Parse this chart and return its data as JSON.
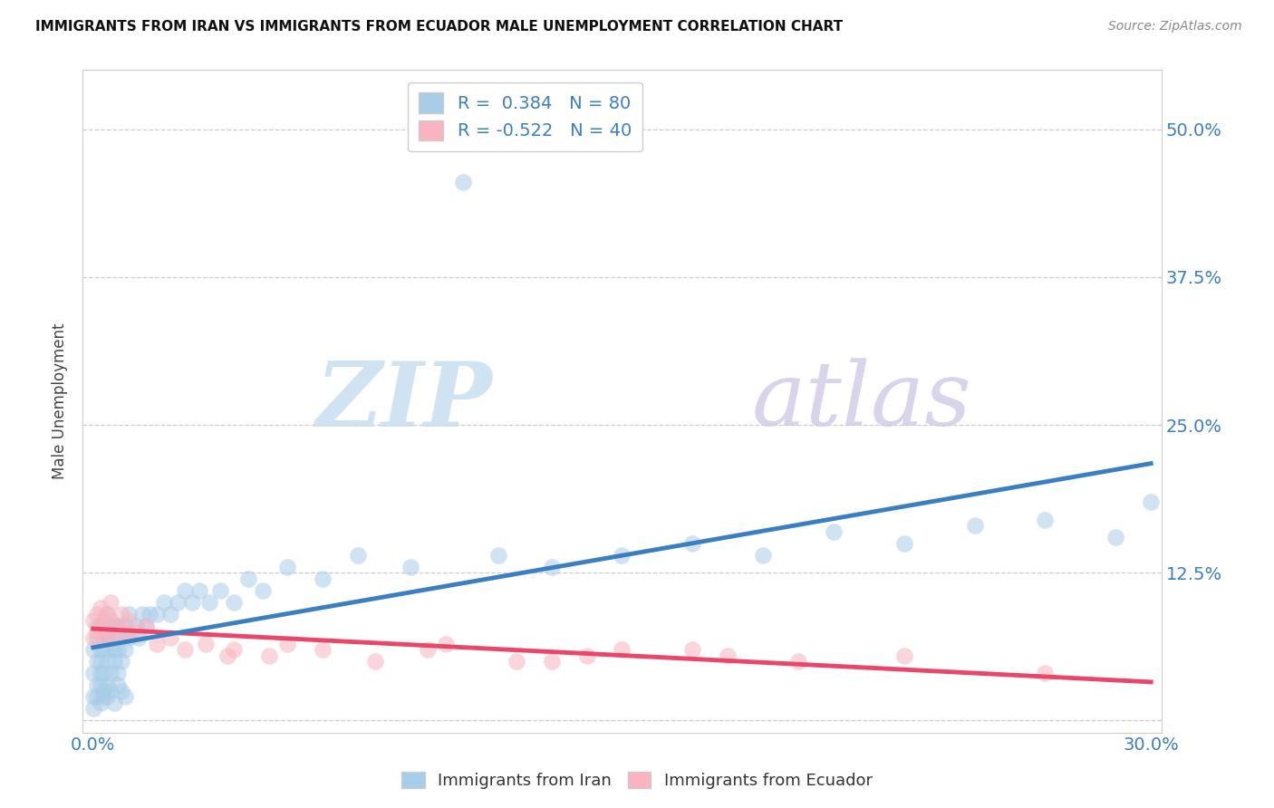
{
  "title": "IMMIGRANTS FROM IRAN VS IMMIGRANTS FROM ECUADOR MALE UNEMPLOYMENT CORRELATION CHART",
  "source": "Source: ZipAtlas.com",
  "ylabel": "Male Unemployment",
  "xlim": [
    0.0,
    0.3
  ],
  "ylim": [
    -0.01,
    0.55
  ],
  "yticks": [
    0.0,
    0.125,
    0.25,
    0.375,
    0.5
  ],
  "ytick_labels": [
    "",
    "12.5%",
    "25.0%",
    "37.5%",
    "50.0%"
  ],
  "iran_R": 0.384,
  "iran_N": 80,
  "ecuador_R": -0.522,
  "ecuador_N": 40,
  "iran_color": "#a8cde8",
  "iran_line_color": "#3a7fc1",
  "ecuador_color": "#f9b4c0",
  "ecuador_line_color": "#e8476a",
  "watermark_zip": "ZIP",
  "watermark_atlas": "atlas",
  "iran_x": [
    0.0,
    0.0,
    0.0,
    0.001,
    0.001,
    0.001,
    0.001,
    0.002,
    0.002,
    0.002,
    0.002,
    0.002,
    0.003,
    0.003,
    0.003,
    0.003,
    0.003,
    0.004,
    0.004,
    0.004,
    0.004,
    0.005,
    0.005,
    0.005,
    0.005,
    0.006,
    0.006,
    0.006,
    0.007,
    0.007,
    0.007,
    0.008,
    0.008,
    0.009,
    0.009,
    0.01,
    0.01,
    0.012,
    0.013,
    0.014,
    0.015,
    0.016,
    0.018,
    0.02,
    0.022,
    0.024,
    0.026,
    0.028,
    0.03,
    0.033,
    0.036,
    0.04,
    0.044,
    0.048,
    0.055,
    0.065,
    0.075,
    0.09,
    0.105,
    0.115,
    0.13,
    0.15,
    0.17,
    0.19,
    0.21,
    0.23,
    0.25,
    0.27,
    0.29,
    0.3,
    0.0,
    0.001,
    0.002,
    0.003,
    0.004,
    0.005,
    0.006,
    0.007,
    0.008,
    0.009
  ],
  "iran_y": [
    0.04,
    0.06,
    0.02,
    0.05,
    0.07,
    0.03,
    0.08,
    0.04,
    0.06,
    0.08,
    0.03,
    0.05,
    0.04,
    0.06,
    0.08,
    0.02,
    0.07,
    0.05,
    0.07,
    0.09,
    0.03,
    0.06,
    0.08,
    0.04,
    0.07,
    0.05,
    0.08,
    0.06,
    0.06,
    0.08,
    0.04,
    0.07,
    0.05,
    0.08,
    0.06,
    0.07,
    0.09,
    0.08,
    0.07,
    0.09,
    0.08,
    0.09,
    0.09,
    0.1,
    0.09,
    0.1,
    0.11,
    0.1,
    0.11,
    0.1,
    0.11,
    0.1,
    0.12,
    0.11,
    0.13,
    0.12,
    0.14,
    0.13,
    0.455,
    0.14,
    0.13,
    0.14,
    0.15,
    0.14,
    0.16,
    0.15,
    0.165,
    0.17,
    0.155,
    0.185,
    0.01,
    0.02,
    0.015,
    0.025,
    0.02,
    0.025,
    0.015,
    0.03,
    0.025,
    0.02
  ],
  "ecuador_x": [
    0.0,
    0.0,
    0.001,
    0.001,
    0.002,
    0.002,
    0.003,
    0.003,
    0.004,
    0.004,
    0.005,
    0.005,
    0.006,
    0.007,
    0.008,
    0.009,
    0.01,
    0.012,
    0.015,
    0.018,
    0.022,
    0.026,
    0.032,
    0.038,
    0.05,
    0.065,
    0.08,
    0.095,
    0.12,
    0.14,
    0.17,
    0.2,
    0.23,
    0.27,
    0.1,
    0.13,
    0.15,
    0.18,
    0.04,
    0.055
  ],
  "ecuador_y": [
    0.085,
    0.07,
    0.09,
    0.075,
    0.08,
    0.095,
    0.085,
    0.07,
    0.09,
    0.075,
    0.085,
    0.1,
    0.07,
    0.08,
    0.09,
    0.075,
    0.085,
    0.075,
    0.08,
    0.065,
    0.07,
    0.06,
    0.065,
    0.055,
    0.055,
    0.06,
    0.05,
    0.06,
    0.05,
    0.055,
    0.06,
    0.05,
    0.055,
    0.04,
    0.065,
    0.05,
    0.06,
    0.055,
    0.06,
    0.065
  ]
}
